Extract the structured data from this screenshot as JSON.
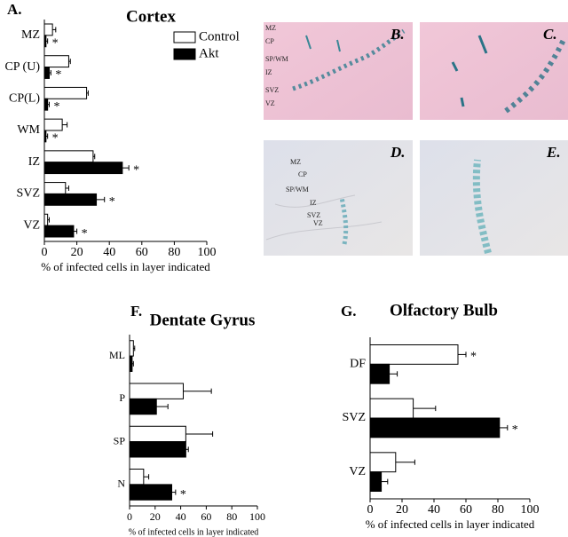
{
  "chart_data": [
    {
      "type": "bar",
      "orientation": "horizontal",
      "panel_label": "A.",
      "title": "Cortex",
      "xlabel": "% of infected cells in layer indicated",
      "categories": [
        "MZ",
        "CP (U)",
        "CP(L)",
        "WM",
        "IZ",
        "SVZ",
        "VZ"
      ],
      "series": [
        {
          "name": "Control",
          "color": "#ffffff",
          "values": [
            5,
            15,
            26,
            11,
            30,
            13,
            2
          ],
          "errors": [
            2,
            1,
            1,
            3,
            1,
            2,
            1
          ],
          "markers": [
            null,
            null,
            null,
            null,
            null,
            null,
            null
          ]
        },
        {
          "name": "Akt",
          "color": "#000000",
          "values": [
            1,
            3,
            2,
            1,
            48,
            32,
            18
          ],
          "errors": [
            1,
            1,
            1,
            1,
            4,
            5,
            2
          ],
          "markers": [
            "*",
            "*",
            "*",
            "*",
            "*",
            "*",
            "*"
          ]
        }
      ],
      "xlim": [
        0,
        100
      ],
      "xticks": [
        0,
        20,
        40,
        60,
        80,
        100
      ],
      "legend": "upper right"
    },
    {
      "type": "bar",
      "orientation": "horizontal",
      "panel_label": "F.",
      "title": "Dentate Gyrus",
      "xlabel": "% of infected cells in layer indicated",
      "categories": [
        "ML",
        "P",
        "SP",
        "N"
      ],
      "series": [
        {
          "name": "Control",
          "color": "#ffffff",
          "values": [
            3,
            42,
            44,
            11
          ],
          "errors": [
            1,
            22,
            21,
            4
          ],
          "markers": [
            null,
            null,
            null,
            null
          ]
        },
        {
          "name": "Akt",
          "color": "#000000",
          "values": [
            2,
            21,
            44,
            33
          ],
          "errors": [
            1,
            9,
            2,
            3
          ],
          "markers": [
            null,
            null,
            null,
            "*"
          ]
        }
      ],
      "xlim": [
        0,
        100
      ],
      "xticks": [
        0,
        20,
        40,
        60,
        80,
        100
      ]
    },
    {
      "type": "bar",
      "orientation": "horizontal",
      "panel_label": "G.",
      "title": "Olfactory Bulb",
      "xlabel": "% of infected cells in layer indicated",
      "categories": [
        "DF",
        "SVZ",
        "VZ"
      ],
      "series": [
        {
          "name": "Control",
          "color": "#ffffff",
          "values": [
            55,
            27,
            16
          ],
          "errors": [
            5,
            14,
            12
          ],
          "markers": [
            "*",
            null,
            null
          ]
        },
        {
          "name": "Akt",
          "color": "#000000",
          "values": [
            12,
            81,
            7
          ],
          "errors": [
            5,
            5,
            4
          ],
          "markers": [
            null,
            "*",
            null
          ]
        }
      ],
      "xlim": [
        0,
        100
      ],
      "xticks": [
        0,
        20,
        40,
        60,
        80,
        100
      ]
    }
  ],
  "images": [
    {
      "label": "B.",
      "layers": [
        "MZ",
        "CP",
        "SP/WM",
        "IZ",
        "SVZ",
        "VZ"
      ]
    },
    {
      "label": "C."
    },
    {
      "label": "D.",
      "layers": [
        "MZ",
        "CP",
        "SP/WM",
        "IZ",
        "SVZ",
        "VZ"
      ]
    },
    {
      "label": "E."
    }
  ]
}
